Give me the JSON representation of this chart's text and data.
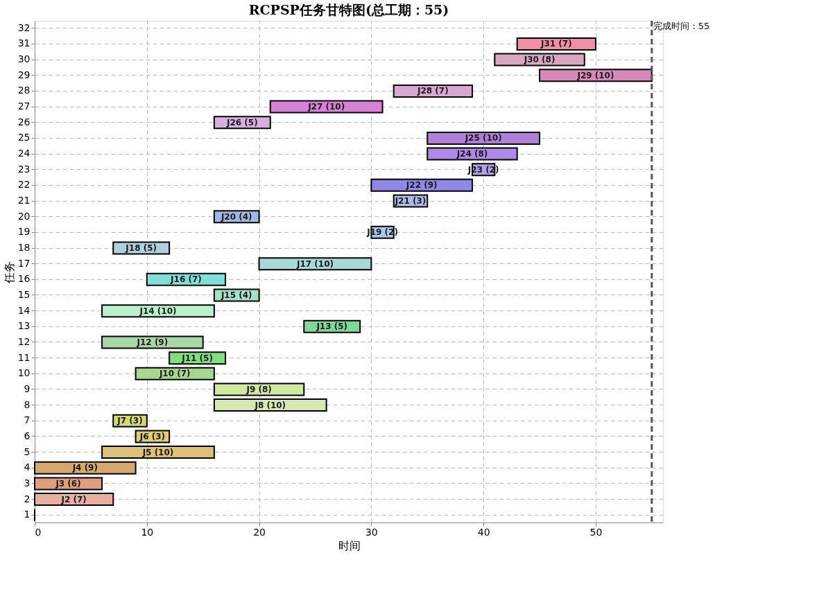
{
  "chart_data": {
    "type": "bar",
    "orientation": "horizontal",
    "title": "RCPSP任务甘特图(总工期：55)",
    "xlabel": "时间",
    "ylabel": "任务",
    "categories": [
      "32",
      "31",
      "30",
      "29",
      "28",
      "27",
      "26",
      "25",
      "24",
      "23",
      "22",
      "21",
      "20",
      "19",
      "18",
      "17",
      "16",
      "15",
      "14",
      "13",
      "12",
      "11",
      "10",
      "9",
      "8",
      "7",
      "6",
      "5",
      "4",
      "3",
      "2",
      "1"
    ],
    "base": [
      null,
      43,
      41,
      45,
      32,
      21,
      16,
      35,
      35,
      39,
      30,
      32,
      16,
      30,
      7,
      20,
      10,
      16,
      6,
      24,
      6,
      12,
      9,
      16,
      16,
      7,
      9,
      6,
      0,
      0,
      0,
      0
    ],
    "values": [
      null,
      7,
      8,
      10,
      7,
      10,
      5,
      10,
      8,
      2,
      9,
      3,
      4,
      2,
      5,
      10,
      7,
      4,
      10,
      5,
      9,
      5,
      7,
      8,
      10,
      3,
      3,
      10,
      9,
      6,
      7,
      0
    ],
    "value_labels": [
      null,
      "J31 (7)",
      "J30 (8)",
      "J29 (10)",
      "J28 (7)",
      "J27 (10)",
      "J26 (5)",
      "J25 (10)",
      "J24 (8)",
      "J23 (2)",
      "J22 (9)",
      "J21 (3)",
      "J20 (4)",
      "J19 (2)",
      "J18 (5)",
      "J17 (10)",
      "J16 (7)",
      "J15 (4)",
      "J14 (10)",
      "J13 (5)",
      "J12 (9)",
      "J11 (5)",
      "J10 (7)",
      "J9 (8)",
      "J8 (10)",
      "J7 (3)",
      "J6 (3)",
      "J5 (10)",
      "J4 (9)",
      "J3 (6)",
      "J2 (7)",
      null
    ],
    "colors": [
      "#888888",
      "#f090a8",
      "#d8a8c0",
      "#d888b8",
      "#d8a8d0",
      "#d880d8",
      "#d8b0e0",
      "#b080d8",
      "#b088e8",
      "#b0a0e8",
      "#9088e8",
      "#b0b8e8",
      "#a0b8e8",
      "#a8c8e8",
      "#b0d0e0",
      "#a8d8d8",
      "#80e0d8",
      "#a8e0c8",
      "#b8f0d0",
      "#80d898",
      "#a8d8a8",
      "#80e080",
      "#a8d890",
      "#d0e8a0",
      "#d8e8b0",
      "#d4d878",
      "#dcd070",
      "#dcc078",
      "#d4a870",
      "#e0a080",
      "#e8b0a0",
      "#000000"
    ],
    "xlim": [
      0,
      56
    ],
    "xticks": [
      0,
      10,
      20,
      30,
      40,
      50
    ],
    "grid": true,
    "ref_lines": [
      {
        "axis": "x",
        "value": 55,
        "label": "完成时间：55",
        "color": "#555555",
        "line_style": "dashed"
      }
    ]
  }
}
